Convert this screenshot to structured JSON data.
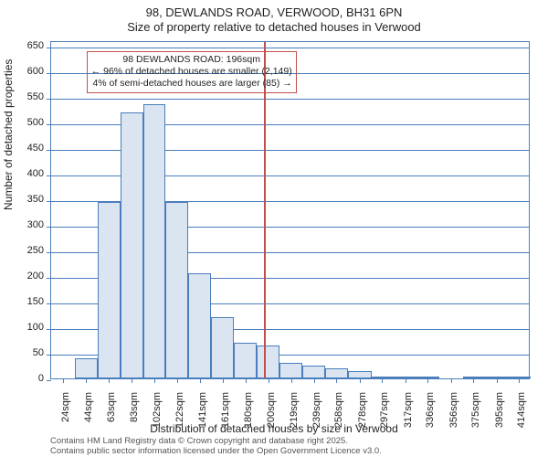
{
  "title_line1": "98, DEWLANDS ROAD, VERWOOD, BH31 6PN",
  "title_line2": "Size of property relative to detached houses in Verwood",
  "ylabel": "Number of detached properties",
  "xlabel": "Distribution of detached houses by size in Verwood",
  "footer_line1": "Contains HM Land Registry data © Crown copyright and database right 2025.",
  "footer_line2": "Contains public sector information licensed under the Open Government Licence v3.0.",
  "annotation": {
    "line1": "98 DEWLANDS ROAD: 196sqm",
    "line2": "← 96% of detached houses are smaller (2,149)",
    "line3": "4% of semi-detached houses are larger (85) →"
  },
  "chart": {
    "type": "histogram",
    "xlim": [
      14,
      424
    ],
    "ylim": [
      0,
      660
    ],
    "ytick_step": 50,
    "reference_x": 196,
    "background_color": "#ffffff",
    "grid_color": "#4a7ebb",
    "bar_fill": "#dbe5f1",
    "bar_stroke": "#4a7ebb",
    "reference_color": "#c0504d",
    "annotation_border": "#c0504d",
    "title_fontsize": 13,
    "label_fontsize": 12,
    "tick_fontsize": 11,
    "annotation_fontsize": 10.5,
    "footer_fontsize": 9.5,
    "xticks": [
      24,
      44,
      63,
      83,
      102,
      122,
      141,
      161,
      180,
      200,
      219,
      239,
      258,
      278,
      297,
      317,
      336,
      356,
      375,
      395,
      414
    ],
    "bars": [
      {
        "x0": 34,
        "x1": 54,
        "y": 40
      },
      {
        "x0": 54,
        "x1": 73,
        "y": 345
      },
      {
        "x0": 73,
        "x1": 93,
        "y": 520
      },
      {
        "x0": 93,
        "x1": 112,
        "y": 535
      },
      {
        "x0": 112,
        "x1": 131,
        "y": 345
      },
      {
        "x0": 131,
        "x1": 151,
        "y": 205
      },
      {
        "x0": 151,
        "x1": 170,
        "y": 120
      },
      {
        "x0": 170,
        "x1": 190,
        "y": 70
      },
      {
        "x0": 190,
        "x1": 209,
        "y": 65
      },
      {
        "x0": 209,
        "x1": 229,
        "y": 30
      },
      {
        "x0": 229,
        "x1": 248,
        "y": 25
      },
      {
        "x0": 248,
        "x1": 268,
        "y": 20
      },
      {
        "x0": 268,
        "x1": 288,
        "y": 15
      },
      {
        "x0": 288,
        "x1": 307,
        "y": 4
      },
      {
        "x0": 307,
        "x1": 327,
        "y": 1
      },
      {
        "x0": 327,
        "x1": 346,
        "y": 1
      },
      {
        "x0": 346,
        "x1": 366,
        "y": 0
      },
      {
        "x0": 366,
        "x1": 385,
        "y": 1
      },
      {
        "x0": 385,
        "x1": 405,
        "y": 1
      },
      {
        "x0": 405,
        "x1": 424,
        "y": 1
      }
    ]
  }
}
